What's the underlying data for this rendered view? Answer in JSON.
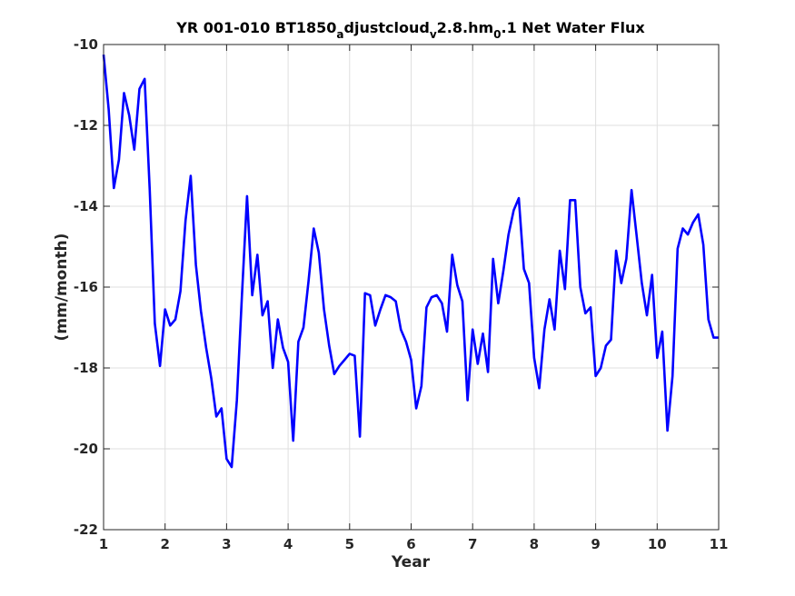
{
  "chart_data": {
    "type": "line",
    "title": {
      "parts": [
        {
          "text": "YR 001-010 BT1850",
          "sub": false
        },
        {
          "text": "a",
          "sub": true
        },
        {
          "text": "djustcloud",
          "sub": false
        },
        {
          "text": "v",
          "sub": true
        },
        {
          "text": "2.8.hm",
          "sub": false
        },
        {
          "text": "0",
          "sub": true
        },
        {
          "text": ".1 Net Water Flux",
          "sub": false
        }
      ]
    },
    "xlabel": "Year",
    "ylabel": "(mm/month)",
    "xlim": [
      1,
      11
    ],
    "ylim": [
      -22,
      -10
    ],
    "xticks": [
      1,
      2,
      3,
      4,
      5,
      6,
      7,
      8,
      9,
      10,
      11
    ],
    "yticks": [
      -22,
      -20,
      -18,
      -16,
      -14,
      -12,
      -10
    ],
    "grid": true,
    "series": [
      {
        "color": "#0000ff",
        "x": [
          1.0,
          1.083,
          1.167,
          1.25,
          1.333,
          1.417,
          1.5,
          1.583,
          1.667,
          1.75,
          1.833,
          1.917,
          2.0,
          2.083,
          2.167,
          2.25,
          2.333,
          2.417,
          2.5,
          2.583,
          2.667,
          2.75,
          2.833,
          2.917,
          3.0,
          3.083,
          3.167,
          3.25,
          3.333,
          3.417,
          3.5,
          3.583,
          3.667,
          3.75,
          3.833,
          3.917,
          4.0,
          4.083,
          4.167,
          4.25,
          4.333,
          4.417,
          4.5,
          4.583,
          4.667,
          4.75,
          4.833,
          4.917,
          5.0,
          5.083,
          5.167,
          5.25,
          5.333,
          5.417,
          5.5,
          5.583,
          5.667,
          5.75,
          5.833,
          5.917,
          6.0,
          6.083,
          6.167,
          6.25,
          6.333,
          6.417,
          6.5,
          6.583,
          6.667,
          6.75,
          6.833,
          6.917,
          7.0,
          7.083,
          7.167,
          7.25,
          7.333,
          7.417,
          7.5,
          7.583,
          7.667,
          7.75,
          7.833,
          7.917,
          8.0,
          8.083,
          8.167,
          8.25,
          8.333,
          8.417,
          8.5,
          8.583,
          8.667,
          8.75,
          8.833,
          8.917,
          9.0,
          9.083,
          9.167,
          9.25,
          9.333,
          9.417,
          9.5,
          9.583,
          9.667,
          9.75,
          9.833,
          9.917,
          10.0,
          10.083,
          10.167,
          10.25,
          10.333,
          10.417,
          10.5,
          10.583,
          10.667,
          10.75,
          10.833,
          10.917,
          11.0
        ],
        "y": [
          -10.25,
          -11.6,
          -13.55,
          -12.85,
          -11.2,
          -11.75,
          -12.6,
          -11.1,
          -10.85,
          -13.6,
          -16.9,
          -17.95,
          -16.55,
          -16.95,
          -16.8,
          -16.1,
          -14.35,
          -13.25,
          -15.45,
          -16.6,
          -17.5,
          -18.25,
          -19.2,
          -19.0,
          -20.25,
          -20.45,
          -18.8,
          -16.2,
          -13.75,
          -16.2,
          -15.2,
          -16.7,
          -16.35,
          -18.0,
          -16.8,
          -17.5,
          -17.85,
          -19.8,
          -17.35,
          -17.0,
          -15.85,
          -14.55,
          -15.15,
          -16.55,
          -17.45,
          -18.15,
          -17.95,
          -17.8,
          -17.65,
          -17.7,
          -19.7,
          -16.15,
          -16.2,
          -16.95,
          -16.55,
          -16.2,
          -16.25,
          -16.35,
          -17.05,
          -17.35,
          -17.8,
          -19.0,
          -18.45,
          -16.5,
          -16.25,
          -16.2,
          -16.4,
          -17.1,
          -15.2,
          -15.95,
          -16.35,
          -18.8,
          -17.05,
          -17.9,
          -17.15,
          -18.1,
          -15.3,
          -16.4,
          -15.6,
          -14.7,
          -14.1,
          -13.8,
          -15.55,
          -15.9,
          -17.75,
          -18.5,
          -17.05,
          -16.3,
          -17.05,
          -15.1,
          -16.05,
          -13.85,
          -13.85,
          -16.0,
          -16.65,
          -16.5,
          -18.2,
          -18.0,
          -17.45,
          -17.3,
          -15.1,
          -15.9,
          -15.3,
          -13.6,
          -14.75,
          -15.9,
          -16.7,
          -15.7,
          -17.75,
          -17.1,
          -19.55,
          -18.2,
          -15.05,
          -14.55,
          -14.7,
          -14.4,
          -14.2,
          -14.95,
          -16.8,
          -17.25,
          -17.25
        ]
      }
    ]
  }
}
